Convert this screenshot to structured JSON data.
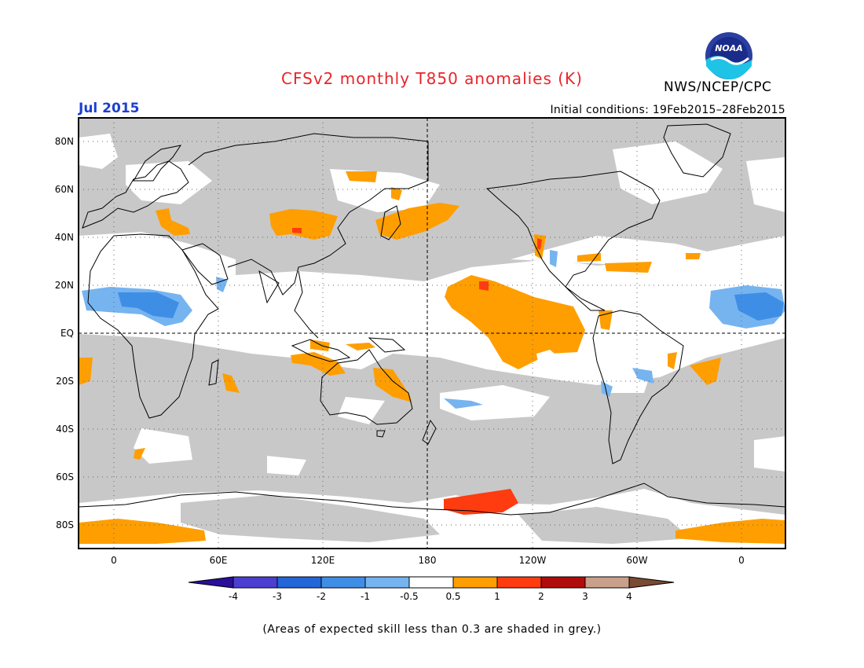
{
  "title": "CFSv2 monthly T850 anomalies (K)",
  "month": "Jul 2015",
  "agency": "NWS/NCEP/CPC",
  "logo_text": "NOAA",
  "initial_conditions": "Initial conditions: 19Feb2015–28Feb2015",
  "footnote": "(Areas of expected skill less than 0.3 are shaded in grey.)",
  "colors": {
    "title": "#e8242c",
    "month": "#1d3fd1",
    "grey_mask": "#c8c8c8",
    "land_outline": "#000000"
  },
  "lat_labels": [
    "80N",
    "60N",
    "40N",
    "20N",
    "EQ",
    "20S",
    "40S",
    "60S",
    "80S"
  ],
  "lon_labels": [
    "0",
    "60E",
    "120E",
    "180",
    "120W",
    "60W",
    "0"
  ],
  "colorbar": {
    "labels": [
      "-4",
      "-3",
      "-2",
      "-1",
      "-0.5",
      "0.5",
      "1",
      "2",
      "3",
      "4"
    ],
    "colors": [
      "#2a0f9a",
      "#4a3fd0",
      "#2366d8",
      "#3f8ee6",
      "#76b4f0",
      "#ffffff",
      "#ff9e00",
      "#ff3b10",
      "#b10c0c",
      "#c8a08c",
      "#7a4a34"
    ]
  }
}
